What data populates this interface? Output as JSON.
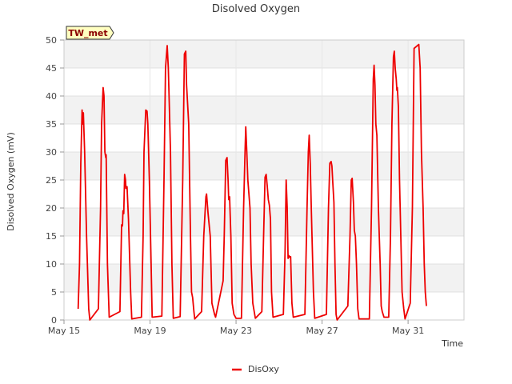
{
  "chart_data": {
    "type": "line",
    "title": "Disolved Oxygen",
    "xlabel": "Time",
    "ylabel": "Disolved Oxygen (mV)",
    "badge": "TW_met",
    "xlim": [
      15.0,
      33.6
    ],
    "ylim": [
      0,
      50
    ],
    "y_ticks": [
      0,
      5,
      10,
      15,
      20,
      25,
      30,
      35,
      40,
      45,
      50
    ],
    "x_ticks": [
      {
        "value": 15,
        "label": "May 15"
      },
      {
        "value": 19,
        "label": "May 19"
      },
      {
        "value": 23,
        "label": "May 23"
      },
      {
        "value": 27,
        "label": "May 27"
      },
      {
        "value": 31,
        "label": "May 31"
      }
    ],
    "grid": true,
    "legend": "bottom-center",
    "series": [
      {
        "name": "DisOxy",
        "color": "#ee0000",
        "points": [
          [
            15.66,
            2
          ],
          [
            15.72,
            10
          ],
          [
            15.78,
            28
          ],
          [
            15.84,
            37.5
          ],
          [
            15.87,
            35
          ],
          [
            15.9,
            37
          ],
          [
            15.96,
            30
          ],
          [
            16.05,
            15
          ],
          [
            16.15,
            2
          ],
          [
            16.2,
            0
          ],
          [
            16.6,
            2
          ],
          [
            16.7,
            20
          ],
          [
            16.75,
            35
          ],
          [
            16.82,
            41.5
          ],
          [
            16.86,
            40
          ],
          [
            16.9,
            30
          ],
          [
            16.94,
            29
          ],
          [
            16.96,
            29.5
          ],
          [
            17.02,
            10
          ],
          [
            17.1,
            0.5
          ],
          [
            17.6,
            1.5
          ],
          [
            17.68,
            17
          ],
          [
            17.72,
            16.8
          ],
          [
            17.74,
            19.5
          ],
          [
            17.78,
            19
          ],
          [
            17.82,
            26
          ],
          [
            17.86,
            25
          ],
          [
            17.88,
            23.5
          ],
          [
            17.93,
            23.8
          ],
          [
            18.0,
            18
          ],
          [
            18.1,
            5
          ],
          [
            18.15,
            0.2
          ],
          [
            18.6,
            0.5
          ],
          [
            18.68,
            15
          ],
          [
            18.72,
            30
          ],
          [
            18.8,
            37.5
          ],
          [
            18.86,
            37.3
          ],
          [
            18.9,
            35
          ],
          [
            18.97,
            25
          ],
          [
            19.05,
            10
          ],
          [
            19.1,
            0.5
          ],
          [
            19.55,
            0.7
          ],
          [
            19.65,
            25
          ],
          [
            19.72,
            45
          ],
          [
            19.8,
            49
          ],
          [
            19.85,
            45
          ],
          [
            19.9,
            38
          ],
          [
            19.95,
            30
          ],
          [
            20.02,
            10
          ],
          [
            20.08,
            0.3
          ],
          [
            20.4,
            0.6
          ],
          [
            20.52,
            25
          ],
          [
            20.6,
            47.5
          ],
          [
            20.66,
            48
          ],
          [
            20.7,
            42
          ],
          [
            20.8,
            35
          ],
          [
            20.88,
            15
          ],
          [
            20.93,
            5
          ],
          [
            20.98,
            4
          ],
          [
            21.04,
            1.5
          ],
          [
            21.08,
            0.2
          ],
          [
            21.4,
            1.5
          ],
          [
            21.5,
            15
          ],
          [
            21.6,
            22
          ],
          [
            21.63,
            22.5
          ],
          [
            21.7,
            19
          ],
          [
            21.8,
            15
          ],
          [
            21.88,
            3
          ],
          [
            22.0,
            1
          ],
          [
            22.05,
            0.5
          ],
          [
            22.4,
            7
          ],
          [
            22.45,
            15
          ],
          [
            22.52,
            28.5
          ],
          [
            22.58,
            29
          ],
          [
            22.63,
            25
          ],
          [
            22.66,
            21.5
          ],
          [
            22.7,
            22
          ],
          [
            22.76,
            15
          ],
          [
            22.82,
            3
          ],
          [
            22.9,
            1
          ],
          [
            23.0,
            0.3
          ],
          [
            23.25,
            0.3
          ],
          [
            23.35,
            20
          ],
          [
            23.42,
            30
          ],
          [
            23.45,
            34.5
          ],
          [
            23.5,
            30
          ],
          [
            23.55,
            25
          ],
          [
            23.65,
            20
          ],
          [
            23.7,
            10
          ],
          [
            23.78,
            3
          ],
          [
            23.9,
            0.3
          ],
          [
            24.2,
            1.5
          ],
          [
            24.28,
            15
          ],
          [
            24.35,
            25.5
          ],
          [
            24.4,
            26
          ],
          [
            24.45,
            24
          ],
          [
            24.5,
            21.5
          ],
          [
            24.55,
            20.5
          ],
          [
            24.6,
            18
          ],
          [
            24.65,
            5
          ],
          [
            24.72,
            0.5
          ],
          [
            25.2,
            1
          ],
          [
            25.28,
            12
          ],
          [
            25.33,
            25
          ],
          [
            25.38,
            20
          ],
          [
            25.42,
            11
          ],
          [
            25.46,
            11.5
          ],
          [
            25.5,
            11.2
          ],
          [
            25.54,
            11.3
          ],
          [
            25.6,
            3
          ],
          [
            25.66,
            0.5
          ],
          [
            26.2,
            1
          ],
          [
            26.3,
            20
          ],
          [
            26.36,
            30
          ],
          [
            26.4,
            33
          ],
          [
            26.45,
            28
          ],
          [
            26.5,
            20
          ],
          [
            26.6,
            5
          ],
          [
            26.66,
            0.3
          ],
          [
            27.2,
            1
          ],
          [
            27.3,
            20
          ],
          [
            27.36,
            28
          ],
          [
            27.42,
            28.3
          ],
          [
            27.46,
            27.5
          ],
          [
            27.5,
            24.5
          ],
          [
            27.55,
            21
          ],
          [
            27.6,
            10
          ],
          [
            27.65,
            1
          ],
          [
            27.7,
            0
          ],
          [
            28.2,
            2.5
          ],
          [
            28.3,
            15
          ],
          [
            28.36,
            25
          ],
          [
            28.4,
            25.3
          ],
          [
            28.46,
            21
          ],
          [
            28.5,
            16
          ],
          [
            28.55,
            15
          ],
          [
            28.6,
            10
          ],
          [
            28.66,
            2
          ],
          [
            28.72,
            0.2
          ],
          [
            29.2,
            0.2
          ],
          [
            29.3,
            20
          ],
          [
            29.38,
            43
          ],
          [
            29.42,
            45.5
          ],
          [
            29.46,
            42
          ],
          [
            29.5,
            35
          ],
          [
            29.55,
            33
          ],
          [
            29.62,
            20
          ],
          [
            29.7,
            10
          ],
          [
            29.75,
            2.5
          ],
          [
            29.8,
            1.5
          ],
          [
            29.88,
            0.5
          ],
          [
            30.1,
            0.5
          ],
          [
            30.18,
            15
          ],
          [
            30.25,
            35
          ],
          [
            30.32,
            47
          ],
          [
            30.36,
            48
          ],
          [
            30.4,
            45
          ],
          [
            30.45,
            43
          ],
          [
            30.48,
            41
          ],
          [
            30.5,
            41.5
          ],
          [
            30.55,
            38
          ],
          [
            30.6,
            25
          ],
          [
            30.66,
            15
          ],
          [
            30.72,
            5
          ],
          [
            30.8,
            2
          ],
          [
            30.86,
            0.2
          ],
          [
            31.1,
            3
          ],
          [
            31.2,
            20
          ],
          [
            31.28,
            48.5
          ],
          [
            31.5,
            49.2
          ],
          [
            31.56,
            45
          ],
          [
            31.62,
            30
          ],
          [
            31.7,
            20
          ],
          [
            31.75,
            10
          ],
          [
            31.8,
            5
          ],
          [
            31.85,
            2.5
          ]
        ]
      }
    ]
  }
}
